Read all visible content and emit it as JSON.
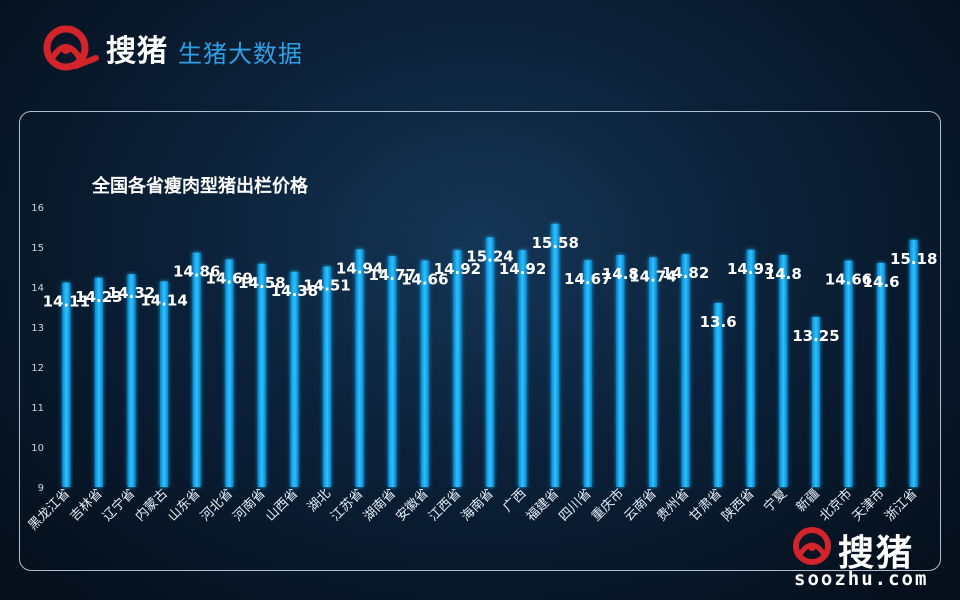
{
  "brand": {
    "name": "搜猪",
    "tagline": "生猪大数据",
    "watermark_url": "soozhu.com",
    "colors": {
      "accent": "#2f9fe6",
      "logo_red": "#d4242b",
      "bar": "#12a6ef"
    }
  },
  "chart_data": {
    "type": "bar",
    "title": "全国各省瘦肉型猪出栏价格",
    "xlabel": "",
    "ylabel": "",
    "ylim": [
      9,
      16
    ],
    "yticks": [
      9,
      10,
      11,
      12,
      13,
      14,
      15,
      16
    ],
    "grid": false,
    "categories": [
      "黑龙江省",
      "吉林省",
      "辽宁省",
      "内蒙古",
      "山东省",
      "河北省",
      "河南省",
      "山西省",
      "湖北",
      "江苏省",
      "湖南省",
      "安徽省",
      "江西省",
      "海南省",
      "广西",
      "福建省",
      "四川省",
      "重庆市",
      "云南省",
      "贵州省",
      "甘肃省",
      "陕西省",
      "宁夏",
      "新疆",
      "北京市",
      "天津市",
      "浙江省"
    ],
    "values": [
      14.11,
      14.23,
      14.32,
      14.14,
      14.86,
      14.69,
      14.58,
      14.38,
      14.51,
      14.94,
      14.77,
      14.66,
      14.92,
      15.24,
      14.92,
      15.58,
      14.67,
      14.8,
      14.74,
      14.82,
      13.6,
      14.93,
      14.8,
      13.25,
      14.66,
      14.6,
      15.18
    ],
    "value_labels": [
      "14.11",
      "14.23",
      "14.32",
      "14.14",
      "14.86",
      "14.69",
      "14.58",
      "14.38",
      "14.51",
      "14.94",
      "14.77",
      "14.66",
      "14.92",
      "15.24",
      "14.92",
      "15.58",
      "14.67",
      "14.8",
      "14.74",
      "14.82",
      "13.6",
      "14.93",
      "14.8",
      "13.25",
      "14.66",
      "14.6",
      "15.18"
    ]
  }
}
